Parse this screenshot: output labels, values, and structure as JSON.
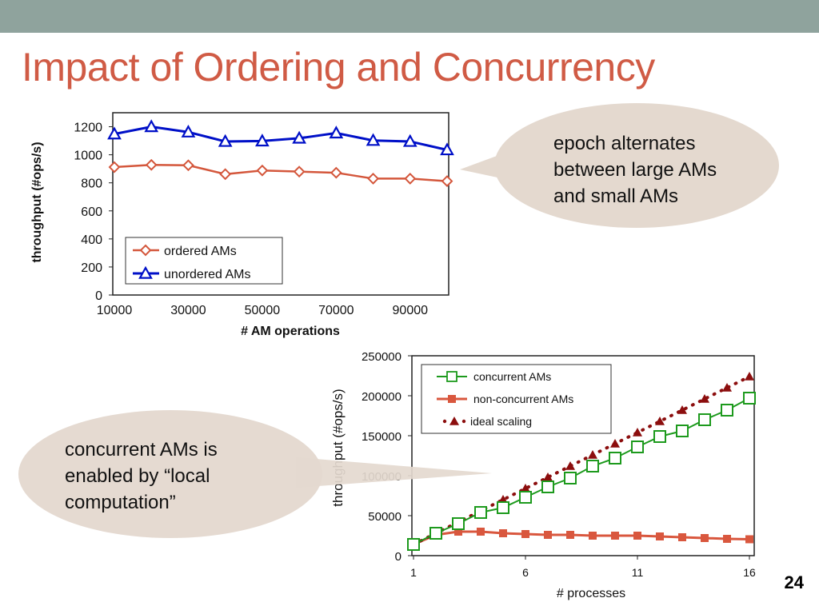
{
  "slide": {
    "title": "Impact of Ordering and Concurrency",
    "page_number": "24"
  },
  "callouts": {
    "top": [
      "epoch alternates",
      "between large AMs",
      "and small AMs"
    ],
    "bottom": [
      "concurrent AMs is",
      "enabled by “local",
      "computation”"
    ]
  },
  "colors": {
    "accent": "#d05b45",
    "topbar": "#8fa39d",
    "bubble": "#e4d9cf",
    "ordered": "#d4573c",
    "unordered": "#0010c8",
    "concurrent": "#1d9a1d",
    "non_concurrent": "#d9573e",
    "ideal": "#8c0e0e"
  },
  "chart_data": [
    {
      "type": "line",
      "xlabel": "# AM operations",
      "ylabel": "throughput (#ops/s)",
      "xlim": [
        10000,
        100000
      ],
      "ylim": [
        0,
        1300
      ],
      "x_ticks": [
        10000,
        30000,
        50000,
        70000,
        90000
      ],
      "y_ticks": [
        0,
        200,
        400,
        600,
        800,
        1000,
        1200
      ],
      "grid": false,
      "legend_position": "bottom-left",
      "x": [
        10000,
        20000,
        30000,
        40000,
        50000,
        60000,
        70000,
        80000,
        90000,
        100000
      ],
      "series": [
        {
          "name": "ordered AMs",
          "marker": "diamond",
          "values": [
            912,
            928,
            925,
            862,
            888,
            880,
            872,
            830,
            830,
            812
          ]
        },
        {
          "name": "unordered AMs",
          "marker": "triangle",
          "values": [
            1148,
            1200,
            1162,
            1095,
            1098,
            1118,
            1155,
            1102,
            1095,
            1035
          ]
        }
      ]
    },
    {
      "type": "line",
      "xlabel": "# processes",
      "ylabel": "throughput (#ops/s)",
      "xlim": [
        1,
        16
      ],
      "ylim": [
        0,
        250000
      ],
      "x_ticks": [
        1,
        6,
        11,
        16
      ],
      "y_ticks": [
        0,
        50000,
        100000,
        150000,
        200000,
        250000
      ],
      "grid": false,
      "legend_position": "top",
      "x": [
        1,
        2,
        3,
        4,
        5,
        6,
        7,
        8,
        9,
        10,
        11,
        12,
        13,
        14,
        15,
        16
      ],
      "series": [
        {
          "name": "concurrent AMs",
          "marker": "square-open",
          "values": [
            14000,
            28000,
            40000,
            54000,
            60000,
            73000,
            86000,
            97000,
            112000,
            122000,
            136000,
            149000,
            156000,
            170000,
            182000,
            197000
          ]
        },
        {
          "name": "non-concurrent AMs",
          "marker": "square",
          "values": [
            14000,
            26000,
            30000,
            30000,
            28000,
            27000,
            26000,
            26000,
            25000,
            25000,
            25000,
            24000,
            23000,
            22000,
            21000,
            20500
          ]
        },
        {
          "name": "ideal scaling",
          "marker": "triangle-dotted",
          "values": [
            14000,
            28000,
            42000,
            56000,
            70000,
            84000,
            98000,
            112000,
            126000,
            140000,
            154000,
            168000,
            182000,
            196000,
            210000,
            224000
          ]
        }
      ]
    }
  ]
}
